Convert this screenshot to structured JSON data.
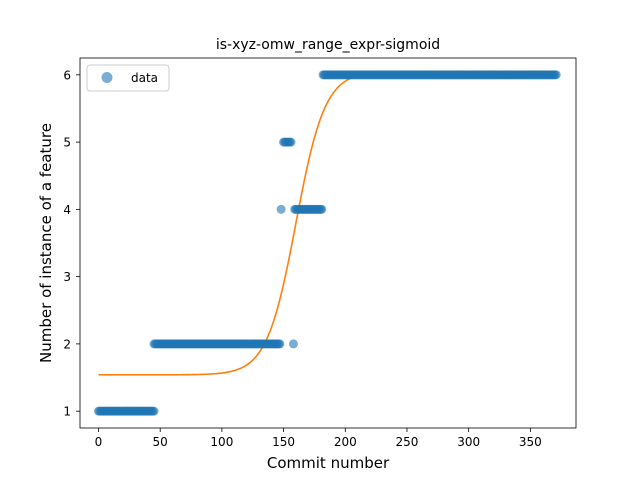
{
  "chart_data": {
    "type": "scatter",
    "title": "is-xyz-omw_range_expr-sigmoid",
    "xlabel": "Commit number",
    "ylabel": "Number of instance of a feature",
    "xlim": [
      -15,
      387
    ],
    "ylim": [
      0.75,
      6.25
    ],
    "xticks": [
      0,
      50,
      100,
      150,
      200,
      250,
      300,
      350
    ],
    "yticks": [
      1,
      2,
      3,
      4,
      5,
      6
    ],
    "grid": false,
    "legend": {
      "placement": "upper-left",
      "entries": [
        "data"
      ]
    },
    "colors": {
      "data": "#1f77b4",
      "fit": "#ff7f0e"
    },
    "series": [
      {
        "name": "data",
        "kind": "points",
        "segments": [
          {
            "x_start": 0,
            "x_end": 45,
            "y": 1
          },
          {
            "x_start": 45,
            "x_end": 147,
            "y": 2
          },
          {
            "x_start": 148,
            "x_end": 148,
            "y": 4
          },
          {
            "x_start": 150,
            "x_end": 156,
            "y": 5
          },
          {
            "x_start": 158,
            "x_end": 158,
            "y": 2
          },
          {
            "x_start": 159,
            "x_end": 181,
            "y": 4
          },
          {
            "x_start": 182,
            "x_end": 371,
            "y": 6
          }
        ]
      },
      {
        "kind": "sigmoid-fit",
        "x_start": 0,
        "x_end": 371,
        "lower": 1.54,
        "upper": 6.05,
        "midpoint": 160,
        "slope": 0.085
      }
    ]
  }
}
